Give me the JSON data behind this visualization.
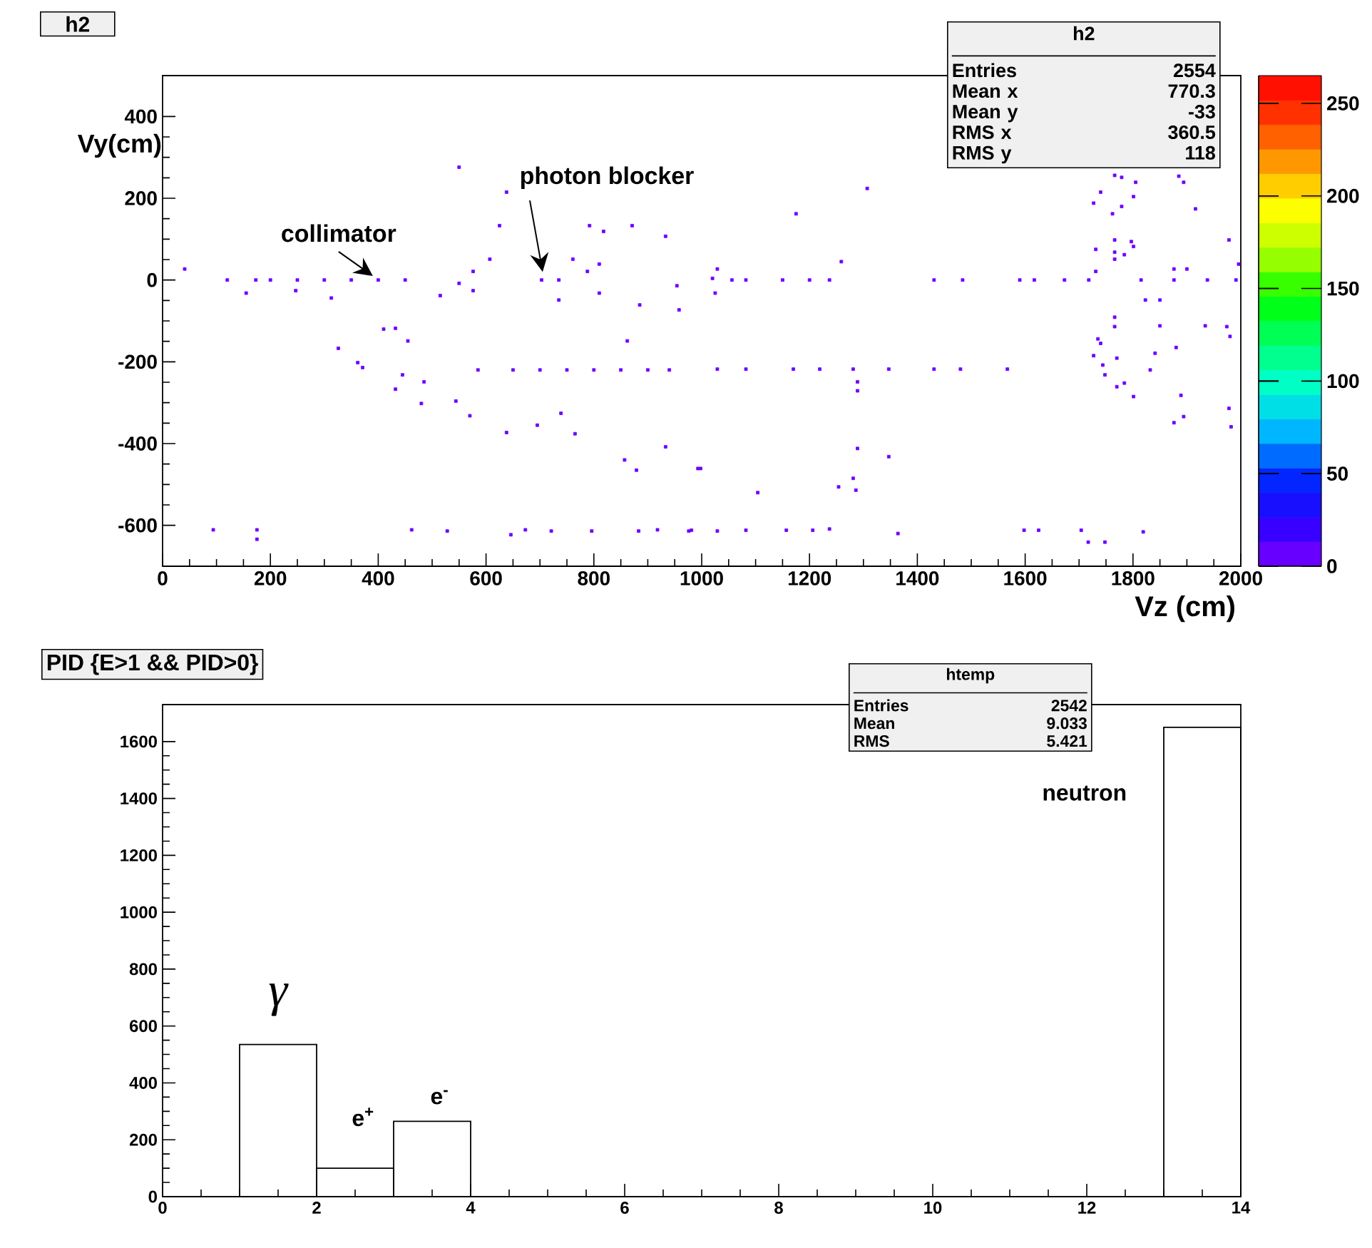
{
  "chart_data": [
    {
      "type": "scatter",
      "title": "h2",
      "xlabel": "Vz (cm)",
      "ylabel": "Vy(cm)",
      "marker": "square",
      "x": [
        41,
        120,
        173,
        200,
        250,
        300,
        350,
        400,
        450,
        155,
        247,
        313,
        515,
        550,
        576,
        576,
        607,
        638,
        550,
        625,
        703,
        735,
        735,
        761,
        788,
        810,
        810,
        792,
        818,
        871,
        933,
        885,
        958,
        862,
        954,
        432,
        410,
        455,
        326,
        362,
        371,
        445,
        432,
        485,
        480,
        544,
        570,
        638,
        695,
        739,
        765,
        857,
        879,
        933,
        993,
        585,
        650,
        700,
        750,
        800,
        850,
        900,
        940,
        94,
        175,
        175,
        462,
        528,
        646,
        673,
        721,
        796,
        883,
        918,
        976,
        1020,
        1025,
        1029,
        1056,
        1082,
        1150,
        1200,
        1237,
        1259,
        1307,
        1175,
        1431,
        1484,
        1590,
        1617,
        1673,
        1718,
        1815,
        1876,
        1938,
        1991,
        1766,
        1779,
        1805,
        1885,
        1894,
        1740,
        1727,
        1801,
        1779,
        1762,
        1916,
        1766,
        1797,
        1801,
        1731,
        1766,
        1784,
        1766,
        1978,
        1996,
        1731,
        1876,
        1900,
        1823,
        1850,
        1766,
        1766,
        1850,
        1934,
        1974,
        1980,
        1735,
        1740,
        1727,
        1744,
        1748,
        1770,
        1832,
        1880,
        1841,
        1770,
        1784,
        1801,
        1889,
        1876,
        1894,
        1978,
        1982,
        1029,
        1082,
        1170,
        1219,
        1281,
        1347,
        1431,
        1480,
        1567,
        1289,
        1289,
        1289,
        1347,
        998,
        1104,
        1254,
        1281,
        1286,
        981,
        1029,
        1082,
        1157,
        1206,
        1237,
        1364,
        1598,
        1625,
        1704,
        1717,
        1748,
        1819
      ],
      "values": [
        27,
        0,
        0,
        0,
        0,
        0,
        0,
        0,
        0,
        -32,
        -26,
        -44,
        -38,
        -8,
        21,
        -26,
        51,
        215,
        276,
        133,
        0,
        0,
        -49,
        51,
        21,
        39,
        -32,
        133,
        119,
        133,
        107,
        -61,
        -73,
        -149,
        -14,
        -118,
        -120,
        -149,
        -167,
        -202,
        -214,
        -232,
        -267,
        -249,
        -302,
        -296,
        -332,
        -373,
        -355,
        -326,
        -376,
        -440,
        -465,
        -408,
        -461,
        -220,
        -220,
        -220,
        -220,
        -220,
        -220,
        -220,
        -220,
        -611,
        -611,
        -634,
        -611,
        -614,
        -623,
        -611,
        -614,
        -614,
        -614,
        -611,
        -614,
        4,
        -32,
        27,
        0,
        0,
        0,
        0,
        0,
        45,
        224,
        162,
        0,
        0,
        0,
        0,
        0,
        0,
        0,
        0,
        0,
        0,
        256,
        251,
        239,
        254,
        239,
        215,
        188,
        204,
        180,
        162,
        174,
        98,
        94,
        82,
        75,
        68,
        62,
        51,
        98,
        39,
        21,
        27,
        27,
        -49,
        -49,
        -91,
        -114,
        -112,
        -112,
        -114,
        -138,
        -144,
        -155,
        -185,
        -208,
        -232,
        -191,
        -220,
        -165,
        -179,
        -261,
        -252,
        -285,
        -282,
        -349,
        -334,
        -314,
        -359,
        -218,
        -218,
        -218,
        -218,
        -218,
        -218,
        -218,
        -218,
        -218,
        -249,
        -271,
        -412,
        -432,
        -461,
        -520,
        -506,
        -485,
        -514,
        -612,
        -614,
        -612,
        -612,
        -612,
        -609,
        -620,
        -612,
        -612,
        -612,
        -641,
        -641,
        -616
      ],
      "cvalues": [
        5,
        5,
        5,
        5,
        5,
        5,
        5,
        5,
        5,
        5,
        5,
        5,
        5,
        5,
        5,
        5,
        5,
        5,
        5,
        5,
        5,
        5,
        5,
        5,
        5,
        5,
        5,
        5,
        5,
        5,
        5,
        5,
        5,
        5,
        5,
        5,
        5,
        5,
        5,
        5,
        5,
        5,
        5,
        5,
        5,
        5,
        5,
        5,
        5,
        5,
        5,
        5,
        5,
        5,
        5,
        5,
        5,
        5,
        5,
        5,
        5,
        5,
        5,
        5,
        5,
        5,
        5,
        5,
        5,
        5,
        5,
        5,
        5,
        5,
        5,
        5,
        5,
        5,
        5,
        5,
        5,
        5,
        5,
        5,
        5,
        5,
        5,
        5,
        5,
        5,
        5,
        5,
        5,
        5,
        5,
        5,
        5,
        5,
        5,
        5,
        5,
        5,
        5,
        5,
        5,
        5,
        5,
        5,
        5,
        5,
        5,
        5,
        5,
        5,
        5,
        5,
        5,
        5,
        5,
        5,
        5,
        5,
        5,
        5,
        5,
        5,
        5,
        5,
        5,
        5,
        5,
        5,
        5,
        5,
        5,
        5,
        5,
        5,
        5,
        5,
        5,
        5,
        5,
        5,
        5,
        5,
        5,
        5,
        5,
        5,
        5,
        5,
        5,
        5,
        5,
        5,
        5,
        5,
        5,
        5,
        5,
        5,
        5,
        5,
        5,
        5,
        5,
        5,
        5,
        5,
        5,
        5,
        5,
        5,
        5
      ],
      "clim": [
        0,
        265
      ],
      "cticks": [
        0,
        50,
        100,
        150,
        200,
        250
      ],
      "xlim": [
        0,
        2000
      ],
      "xticks": [
        0,
        200,
        400,
        600,
        800,
        1000,
        1200,
        1400,
        1600,
        1800,
        2000
      ],
      "ylim": [
        -700,
        500
      ],
      "yticks": [
        -600,
        -400,
        -200,
        0,
        200,
        400
      ],
      "annotations": [
        {
          "text": "collimator",
          "x": 390,
          "y": 10
        },
        {
          "text": "photon blocker",
          "x": 705,
          "y": 20
        },
        "h2",
        "Entries",
        "2554",
        "Mean x",
        "770.3",
        "Mean y",
        "-33",
        "RMS x",
        "360.5",
        "RMS y",
        "118"
      ]
    },
    {
      "type": "histogram",
      "title": "PID {E>1 && PID>0}",
      "color": "#000000",
      "bins": [
        0,
        1,
        2,
        3,
        4,
        5,
        6,
        7,
        8,
        9,
        10,
        11,
        12,
        13,
        14
      ],
      "values": [
        0,
        535,
        100,
        265,
        0,
        0,
        0,
        0,
        0,
        0,
        0,
        0,
        0,
        1650
      ],
      "xlim": [
        0,
        14
      ],
      "xticks": [
        0,
        2,
        4,
        6,
        8,
        10,
        12,
        14
      ],
      "ylim": [
        0,
        1730
      ],
      "yticks": [
        0,
        200,
        400,
        600,
        800,
        1000,
        1200,
        1400,
        1600
      ],
      "annotations": [
        "γ",
        "e$^{+}$",
        "e$^{-}$",
        "neutron",
        "htemp",
        "Entries",
        "2542",
        "Mean",
        "9.033",
        "RMS",
        "5.421"
      ]
    }
  ]
}
